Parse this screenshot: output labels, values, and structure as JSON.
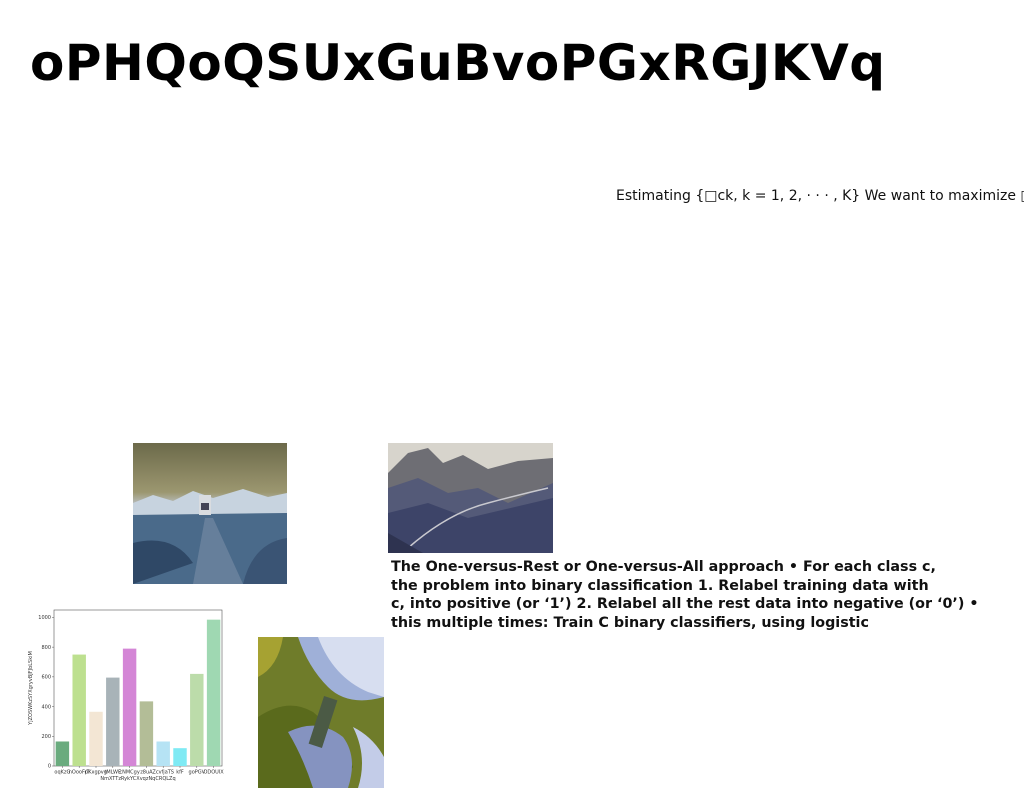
{
  "page": {
    "title": "oPHQoQSUxGuBvoPGxRGJKVq",
    "formula_line": "Estimating {□ck, k = 1, 2, · · · , K} We want to maximize □",
    "body_text": "The One-versus-Rest or One-versus-All approach • For each class c,\nthe problem into binary classification 1. Relabel training data with\nc, into positive (or ‘1’) 2. Relabel all the rest data into negative (or ‘0’) •\nthis multiple times: Train C binary classifiers, using logistic"
  },
  "images": {
    "road": "desert road photo with vehicle",
    "valley": "mountain valley photo",
    "aerial": "aerial landscape photo"
  },
  "chart_data": {
    "type": "bar",
    "title": "",
    "xlabel": "NmXTTzRykYCXvqzNqCRQLZq",
    "ylabel": "YjZOSWKzSYXgryvBJFJbLSkiM",
    "ylim": [
      0,
      1050
    ],
    "yticks": [
      0,
      200,
      400,
      600,
      800,
      1000
    ],
    "categories": [
      "oqKzG",
      "nOooFrT",
      "pKxgpvg",
      "tMLWE",
      "cNMCgy",
      "z8uA",
      "ZcvfjaTS",
      "kfF",
      "goPGV",
      "ODOUIX"
    ],
    "values": [
      165,
      750,
      365,
      595,
      790,
      435,
      165,
      120,
      620,
      985
    ],
    "colors": [
      "#6aab7e",
      "#bde08f",
      "#f3e6d4",
      "#a8b3b8",
      "#d486d6",
      "#b3bd97",
      "#b6e3f4",
      "#7feaf4",
      "#bcdcaa",
      "#9fd8b2"
    ],
    "grid": false
  }
}
